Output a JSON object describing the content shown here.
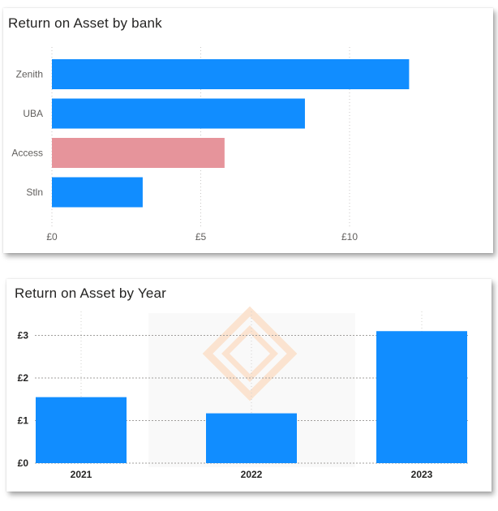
{
  "chart_data": [
    {
      "type": "bar",
      "orientation": "horizontal",
      "title": "Return on Asset by bank",
      "categories": [
        "Zenith",
        "UBA",
        "Access",
        "Stln"
      ],
      "values": [
        12,
        8.5,
        5.8,
        3.05
      ],
      "xlim": [
        0,
        14
      ],
      "xticks": [
        "£0",
        "£5",
        "£10"
      ],
      "xtick_values": [
        0,
        5,
        10
      ],
      "grid": "vertical dotted",
      "colors": {
        "default": "#118DFF",
        "highlight": "#E6949B"
      },
      "highlighted_category": "Access",
      "xlabel": "",
      "ylabel": ""
    },
    {
      "type": "bar",
      "orientation": "vertical",
      "title": "Return on Asset by Year",
      "categories": [
        "2021",
        "2022",
        "2023"
      ],
      "values": [
        1.55,
        1.17,
        3.1
      ],
      "ylim": [
        0,
        3.3
      ],
      "yticks": [
        "£0",
        "£1",
        "£2",
        "£3"
      ],
      "ytick_values": [
        0,
        1,
        2,
        3
      ],
      "grid": "horizontal dotted",
      "colors": {
        "default": "#118DFF"
      },
      "xlabel": "",
      "ylabel": ""
    }
  ]
}
